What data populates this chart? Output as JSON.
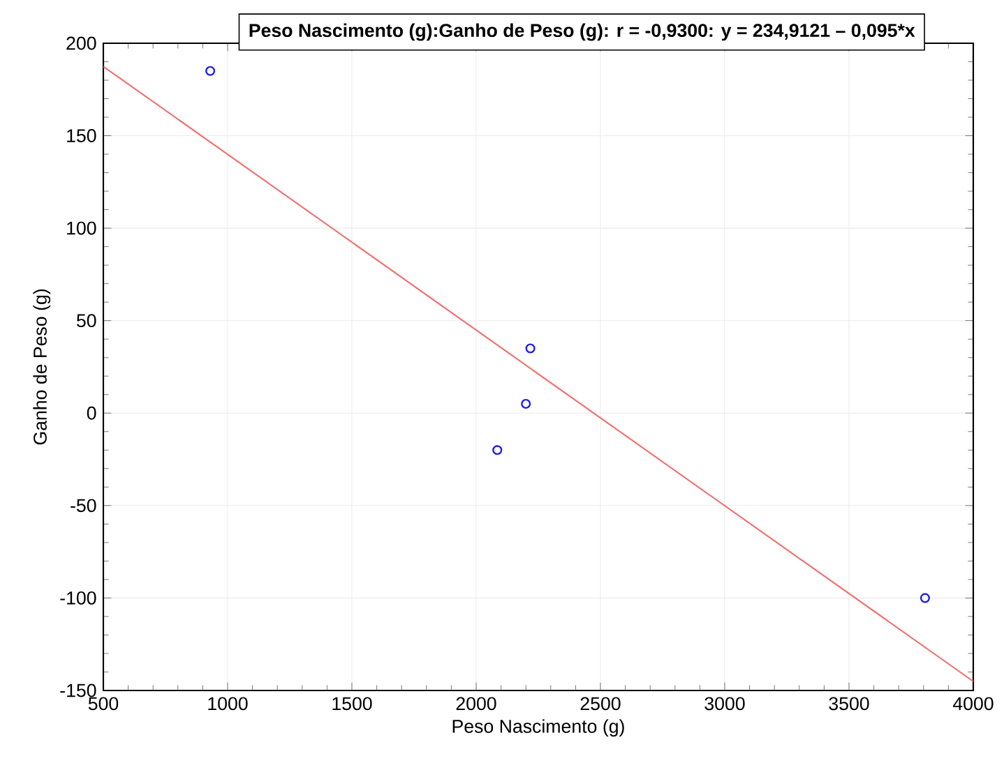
{
  "chart_data": {
    "type": "scatter",
    "title": "Peso Nascimento (g):Ganho de Peso (g): r = -0,9300: y = 234,9121 – 0,095*x",
    "xlabel": "Peso Nascimento (g)",
    "ylabel": "Ganho de Peso (g)",
    "xlim": [
      500,
      4000
    ],
    "ylim": [
      -150,
      200
    ],
    "xticks": [
      500,
      1000,
      1500,
      2000,
      2500,
      3000,
      3500,
      4000
    ],
    "yticks": [
      -150,
      -100,
      -50,
      0,
      50,
      100,
      150,
      200
    ],
    "grid": true,
    "marker": "circle",
    "series": [
      {
        "color": "#1f1fe6",
        "x": [
          930,
          2085,
          2200,
          2218,
          3806
        ],
        "values": [
          185,
          -20,
          5,
          35,
          -100
        ]
      },
      {
        "type": "line",
        "color": "#f07070",
        "marker": "none",
        "line_style": "solid",
        "x": [
          500,
          4000
        ],
        "values": [
          187.4,
          -145.1
        ]
      }
    ]
  }
}
